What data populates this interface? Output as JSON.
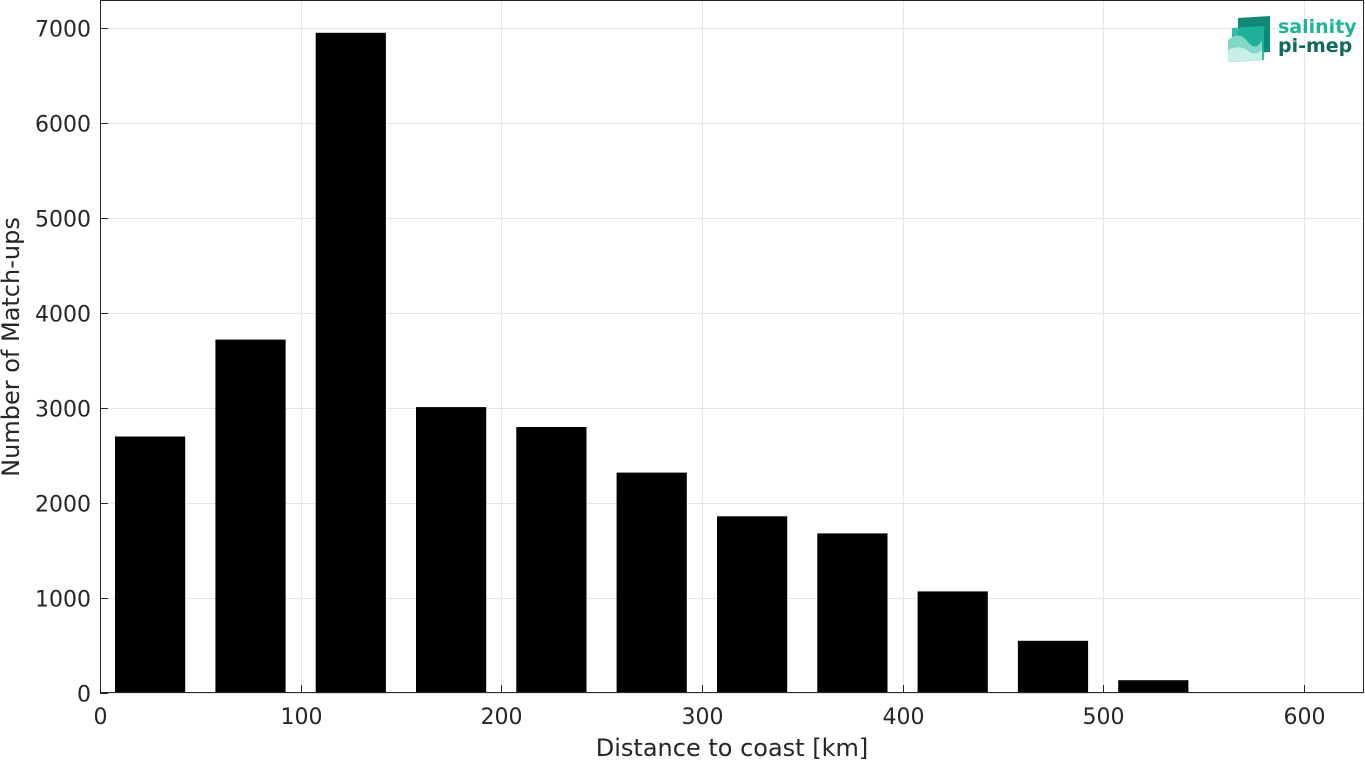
{
  "chart_data": {
    "type": "bar",
    "title": "",
    "xlabel": "Distance to coast [km]",
    "ylabel": "Number of Match-ups",
    "x": [
      25,
      75,
      125,
      175,
      225,
      275,
      325,
      375,
      425,
      475,
      525,
      575
    ],
    "values": [
      2700,
      3720,
      6950,
      3010,
      2800,
      2320,
      1860,
      1680,
      1070,
      550,
      135,
      5
    ],
    "bin_width": 35,
    "xlim": [
      0,
      630
    ],
    "ylim": [
      0,
      7000
    ],
    "xticks": [
      0,
      100,
      200,
      300,
      400,
      500,
      600
    ],
    "yticks": [
      0,
      1000,
      2000,
      3000,
      4000,
      5000,
      6000,
      7000
    ],
    "grid": true,
    "bar_color": "#000000"
  },
  "logo": {
    "line1": "salinity",
    "line2": "pi-mep",
    "color1": "#1fb59a",
    "color2": "#0f6b5d"
  }
}
